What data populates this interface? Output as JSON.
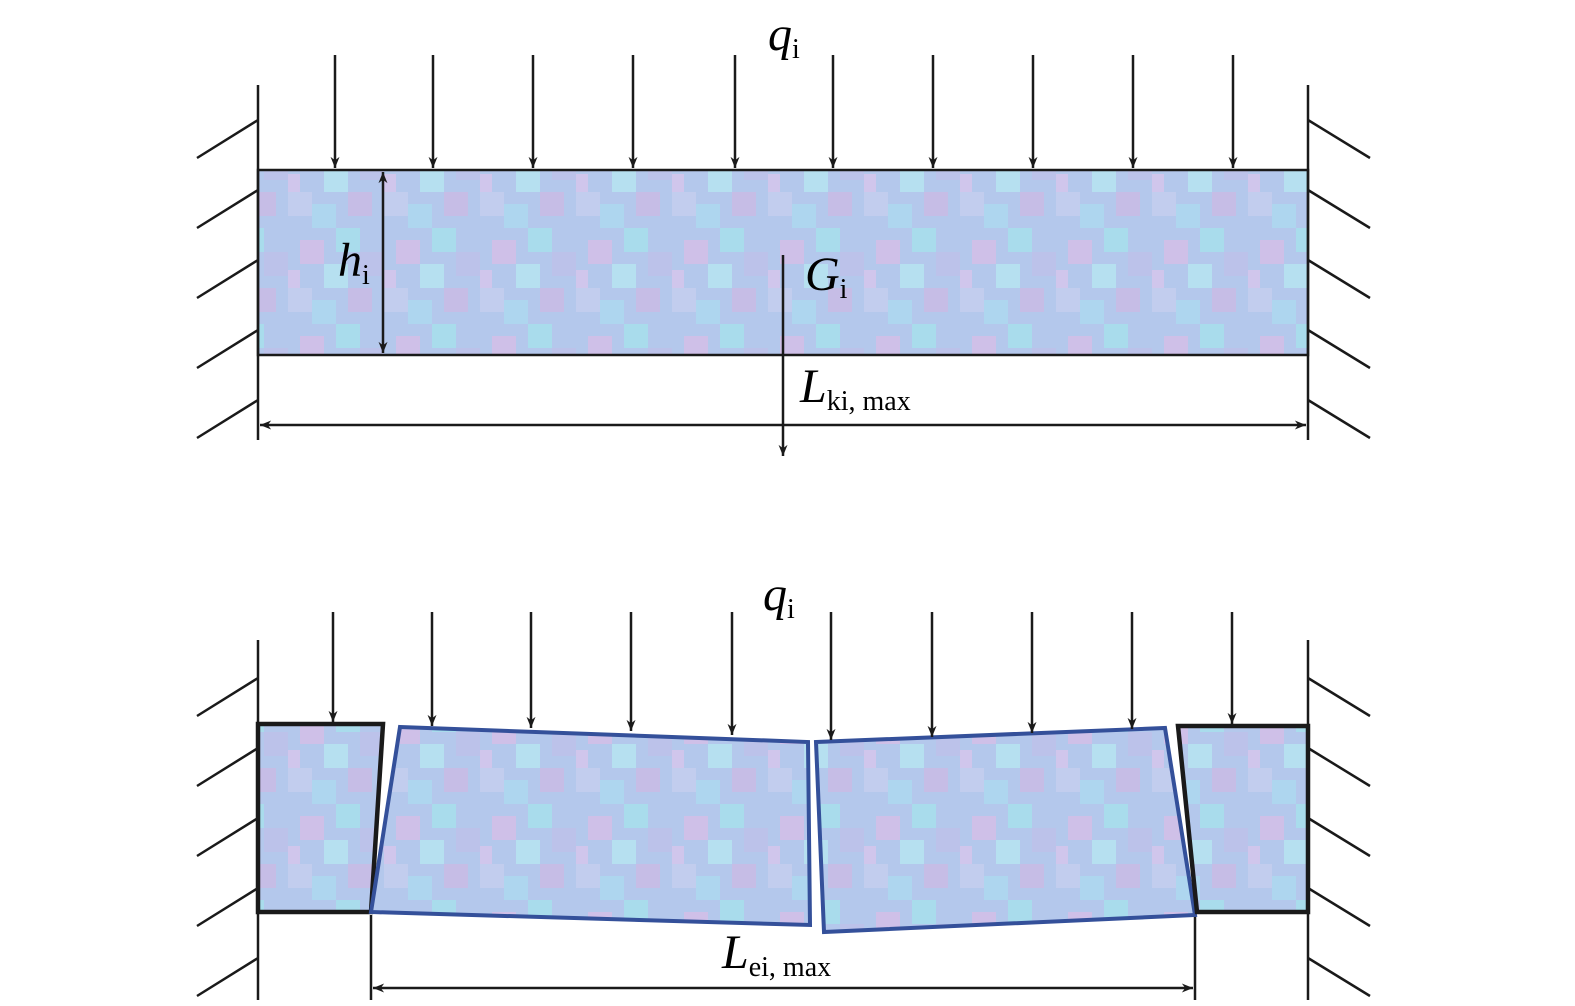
{
  "top": {
    "load": {
      "symbol": "q",
      "subscript": "i"
    },
    "height": {
      "symbol": "h",
      "subscript": "i"
    },
    "weight": {
      "symbol": "G",
      "subscript": "i"
    },
    "span": {
      "symbol": "L",
      "subscript": "ki, max"
    }
  },
  "bottom": {
    "load": {
      "symbol": "q",
      "subscript": "i"
    },
    "span": {
      "symbol": "L",
      "subscript": "ei, max"
    }
  }
}
